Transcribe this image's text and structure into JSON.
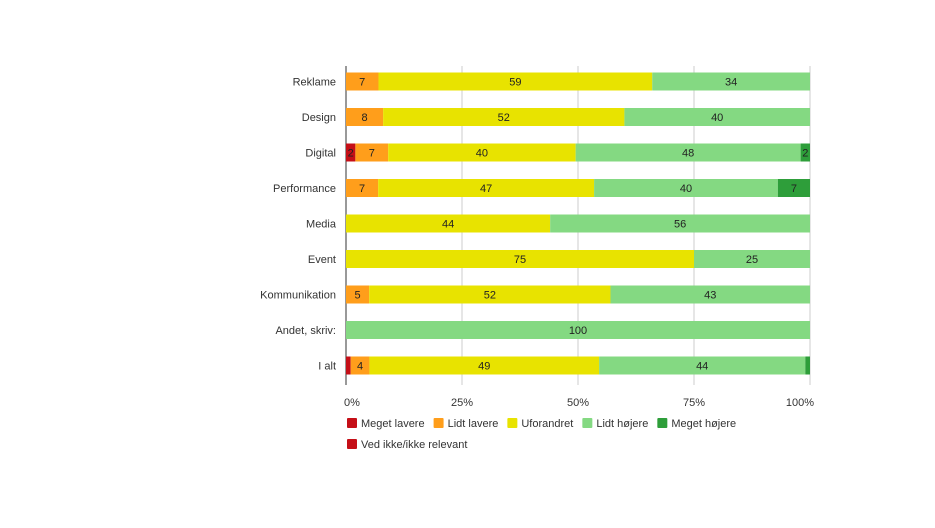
{
  "chart_data": {
    "type": "bar",
    "orientation": "horizontal",
    "stacked": "percent",
    "categories": [
      "Reklame",
      "Design",
      "Digital",
      "Performance",
      "Media",
      "Event",
      "Kommunikation",
      "Andet, skriv:",
      "I alt"
    ],
    "series": [
      {
        "name": "Meget lavere",
        "color": "#c50f17",
        "values": [
          0,
          0,
          2,
          0,
          0,
          0,
          0,
          0,
          1
        ]
      },
      {
        "name": "Lidt lavere",
        "color": "#ff9e1b",
        "values": [
          7,
          8,
          7,
          7,
          0,
          0,
          5,
          0,
          4
        ]
      },
      {
        "name": "Uforandret",
        "color": "#e8e300",
        "values": [
          59,
          52,
          40,
          47,
          44,
          75,
          52,
          0,
          49
        ]
      },
      {
        "name": "Lidt højere",
        "color": "#84d982",
        "values": [
          34,
          40,
          48,
          40,
          56,
          25,
          43,
          100,
          44
        ]
      },
      {
        "name": "Meget højere",
        "color": "#2e9e3a",
        "values": [
          0,
          0,
          2,
          7,
          0,
          0,
          0,
          0,
          1
        ]
      },
      {
        "name": "Ved ikke/ikke relevant",
        "color": "#c50f17",
        "values": [
          0,
          0,
          0,
          0,
          0,
          0,
          0,
          0,
          0
        ]
      }
    ],
    "value_labels": [
      [
        "",
        "",
        "2",
        "",
        "",
        "",
        "",
        "",
        ""
      ],
      [
        "7",
        "8",
        "7",
        "7",
        "",
        "",
        "5",
        "",
        "4"
      ],
      [
        "59",
        "52",
        "40",
        "47",
        "44",
        "75",
        "52",
        "",
        "49"
      ],
      [
        "34",
        "40",
        "48",
        "40",
        "56",
        "25",
        "43",
        "100",
        "44"
      ],
      [
        "",
        "",
        "2",
        "7",
        "",
        "",
        "",
        "",
        ""
      ],
      [
        "",
        "",
        "",
        "",
        "",
        "",
        "",
        "",
        ""
      ]
    ],
    "x_ticks": [
      "0%",
      "25%",
      "50%",
      "75%",
      "100%"
    ],
    "xlim": [
      0,
      100
    ],
    "grid": true,
    "legend_position": "bottom",
    "title": "",
    "xlabel": "",
    "ylabel": ""
  }
}
